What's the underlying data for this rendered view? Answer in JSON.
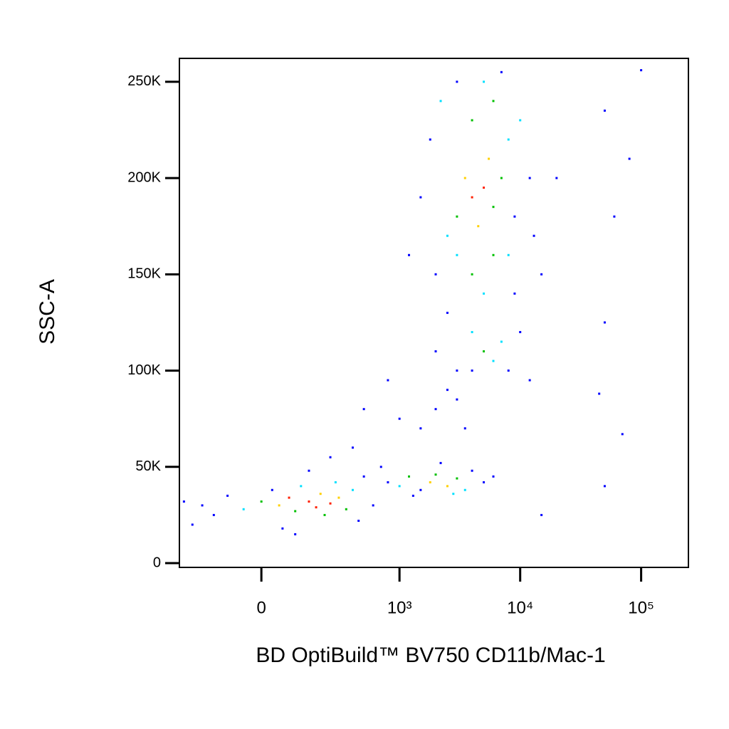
{
  "chart_data": {
    "type": "scatter",
    "xlabel": "BD OptiBuild™ BV750 CD11b/Mac-1",
    "ylabel": "SSC-A",
    "xscale": "biexponential",
    "xlim": [
      -330,
      246000
    ],
    "xticks": [
      {
        "value": 0,
        "label": "0"
      },
      {
        "value": 1000,
        "label": "10³"
      },
      {
        "value": 10000,
        "label": "10⁴"
      },
      {
        "value": 100000,
        "label": "10⁵"
      }
    ],
    "ylim": [
      -2200,
      262144
    ],
    "yticks": [
      {
        "value": 0,
        "label": "0"
      },
      {
        "value": 50000,
        "label": "50K"
      },
      {
        "value": 100000,
        "label": "100K"
      },
      {
        "value": 150000,
        "label": "150K"
      },
      {
        "value": 200000,
        "label": "200K"
      },
      {
        "value": 250000,
        "label": "250K"
      }
    ],
    "x": [
      -200,
      -150,
      -100,
      -50,
      0,
      30,
      50,
      80,
      100,
      120,
      150,
      180,
      200,
      220,
      250,
      280,
      300,
      350,
      400,
      450,
      500,
      600,
      -250,
      -300,
      60,
      150,
      250,
      400,
      700,
      100,
      1000,
      1200,
      1500,
      1800,
      2000,
      2500,
      3000,
      3500,
      4000,
      5000,
      1300,
      2200,
      800,
      6000,
      2800,
      1500,
      2000,
      2500,
      1000,
      3000,
      800,
      500,
      3500,
      2000,
      2500,
      3000,
      3500,
      4000,
      4500,
      5000,
      5500,
      6000,
      7000,
      8000,
      9000,
      10000,
      12000,
      1500,
      1800,
      2200,
      3000,
      4000,
      5000,
      6000,
      7000,
      3000,
      4000,
      5000,
      6000,
      2500,
      4000,
      5000,
      6000,
      7000,
      8000,
      10000,
      12000,
      4000,
      3000,
      15000,
      13000,
      9000,
      8000,
      2000,
      1200,
      20000,
      50000,
      80000,
      60000,
      50000,
      45000,
      70000,
      50000,
      100000,
      15000
    ],
    "y": [
      30000,
      25000,
      35000,
      28000,
      32000,
      38000,
      30000,
      34000,
      27000,
      40000,
      32000,
      29000,
      36000,
      25000,
      31000,
      42000,
      34000,
      28000,
      38000,
      22000,
      45000,
      30000,
      20000,
      32000,
      18000,
      48000,
      55000,
      60000,
      50000,
      15000,
      40000,
      45000,
      38000,
      42000,
      46000,
      40000,
      44000,
      38000,
      48000,
      42000,
      35000,
      52000,
      42000,
      45000,
      36000,
      70000,
      80000,
      90000,
      75000,
      100000,
      95000,
      80000,
      70000,
      150000,
      170000,
      180000,
      200000,
      190000,
      175000,
      195000,
      210000,
      185000,
      200000,
      220000,
      180000,
      230000,
      200000,
      190000,
      220000,
      240000,
      250000,
      230000,
      250000,
      240000,
      255000,
      160000,
      150000,
      140000,
      160000,
      130000,
      120000,
      110000,
      105000,
      115000,
      100000,
      120000,
      95000,
      100000,
      85000,
      150000,
      170000,
      140000,
      160000,
      110000,
      160000,
      200000,
      235000,
      210000,
      180000,
      125000,
      88000,
      67000,
      40000,
      256000,
      25000
    ],
    "colors": [
      "#0000ff",
      "#0000ff",
      "#0000ff",
      "#00e0ff",
      "#00c000",
      "#0000ff",
      "#ffd000",
      "#ff2000",
      "#00c000",
      "#00e0ff",
      "#ff2000",
      "#ff2000",
      "#ffd000",
      "#00c000",
      "#ff2000",
      "#00e0ff",
      "#ffd000",
      "#00c000",
      "#00e0ff",
      "#0000ff",
      "#0000ff",
      "#0000ff",
      "#0000ff",
      "#0000ff",
      "#0000ff",
      "#0000ff",
      "#0000ff",
      "#0000ff",
      "#0000ff",
      "#0000ff",
      "#00e0ff",
      "#00c000",
      "#0000ff",
      "#ffd000",
      "#00c000",
      "#ffd000",
      "#00c000",
      "#00e0ff",
      "#0000ff",
      "#0000ff",
      "#0000ff",
      "#0000ff",
      "#0000ff",
      "#0000ff",
      "#00e0ff",
      "#0000ff",
      "#0000ff",
      "#0000ff",
      "#0000ff",
      "#0000ff",
      "#0000ff",
      "#0000ff",
      "#0000ff",
      "#0000ff",
      "#00e0ff",
      "#00c000",
      "#ffd000",
      "#ff2000",
      "#ffd000",
      "#ff2000",
      "#ffd000",
      "#00c000",
      "#00c000",
      "#00e0ff",
      "#0000ff",
      "#00e0ff",
      "#0000ff",
      "#0000ff",
      "#0000ff",
      "#00e0ff",
      "#0000ff",
      "#00c000",
      "#00e0ff",
      "#00c000",
      "#0000ff",
      "#00e0ff",
      "#00c000",
      "#00e0ff",
      "#00c000",
      "#0000ff",
      "#00e0ff",
      "#00c000",
      "#00e0ff",
      "#00e0ff",
      "#0000ff",
      "#0000ff",
      "#0000ff",
      "#0000ff",
      "#0000ff",
      "#0000ff",
      "#0000ff",
      "#0000ff",
      "#00e0ff",
      "#0000ff",
      "#0000ff",
      "#0000ff",
      "#0000ff",
      "#0000ff",
      "#0000ff",
      "#0000ff",
      "#0000ff",
      "#0000ff",
      "#0000ff",
      "#0000ff",
      "#0000ff"
    ]
  }
}
